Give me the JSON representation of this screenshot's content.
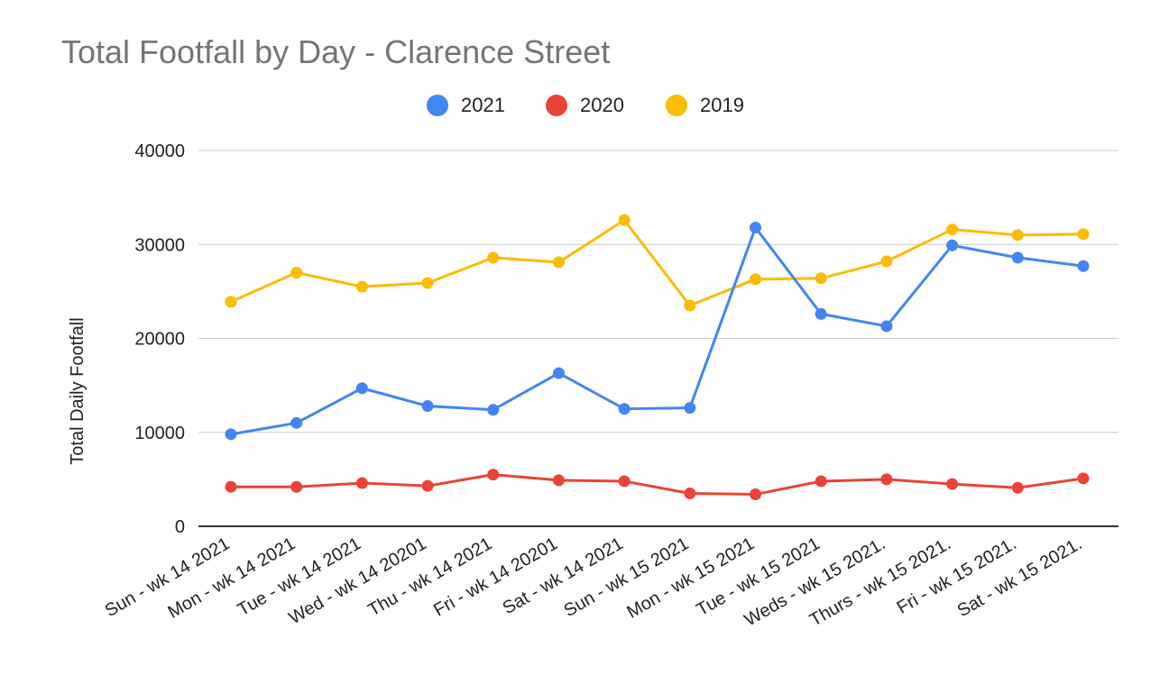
{
  "chart_data": {
    "type": "line",
    "title": "Total Footfall by Day - Clarence Street",
    "xlabel": "",
    "ylabel": "Total Daily Footfall",
    "ylim": [
      0,
      40000
    ],
    "yticks": [
      "0",
      "10000",
      "20000",
      "30000",
      "40000"
    ],
    "grid": true,
    "legend_position": "top",
    "categories": [
      "Sun - wk 14 2021",
      "Mon - wk 14 2021",
      "Tue - wk 14 2021",
      "Wed - wk 14 20201",
      "Thu - wk 14 2021",
      "Fri - wk 14 20201",
      "Sat - wk 14 2021",
      "Sun - wk 15 2021",
      "Mon - wk 15 2021",
      "Tue - wk 15 2021",
      "Weds - wk 15 2021.",
      "Thurs - wk 15 2021.",
      "Fri - wk 15 2021.",
      "Sat - wk 15 2021."
    ],
    "series": [
      {
        "name": "2021",
        "color": "#4285F4",
        "values": [
          9800,
          11000,
          14700,
          12800,
          12400,
          16300,
          12500,
          12600,
          31800,
          22600,
          21300,
          29900,
          28600,
          27700
        ]
      },
      {
        "name": "2020",
        "color": "#EA4335",
        "values": [
          4200,
          4200,
          4600,
          4300,
          5500,
          4900,
          4800,
          3500,
          3400,
          4800,
          5000,
          4500,
          4100,
          5100
        ]
      },
      {
        "name": "2019",
        "color": "#FBBC04",
        "values": [
          23900,
          27000,
          25500,
          25900,
          28600,
          28100,
          32600,
          23500,
          26300,
          26400,
          28200,
          31600,
          31000,
          31100
        ]
      }
    ]
  }
}
